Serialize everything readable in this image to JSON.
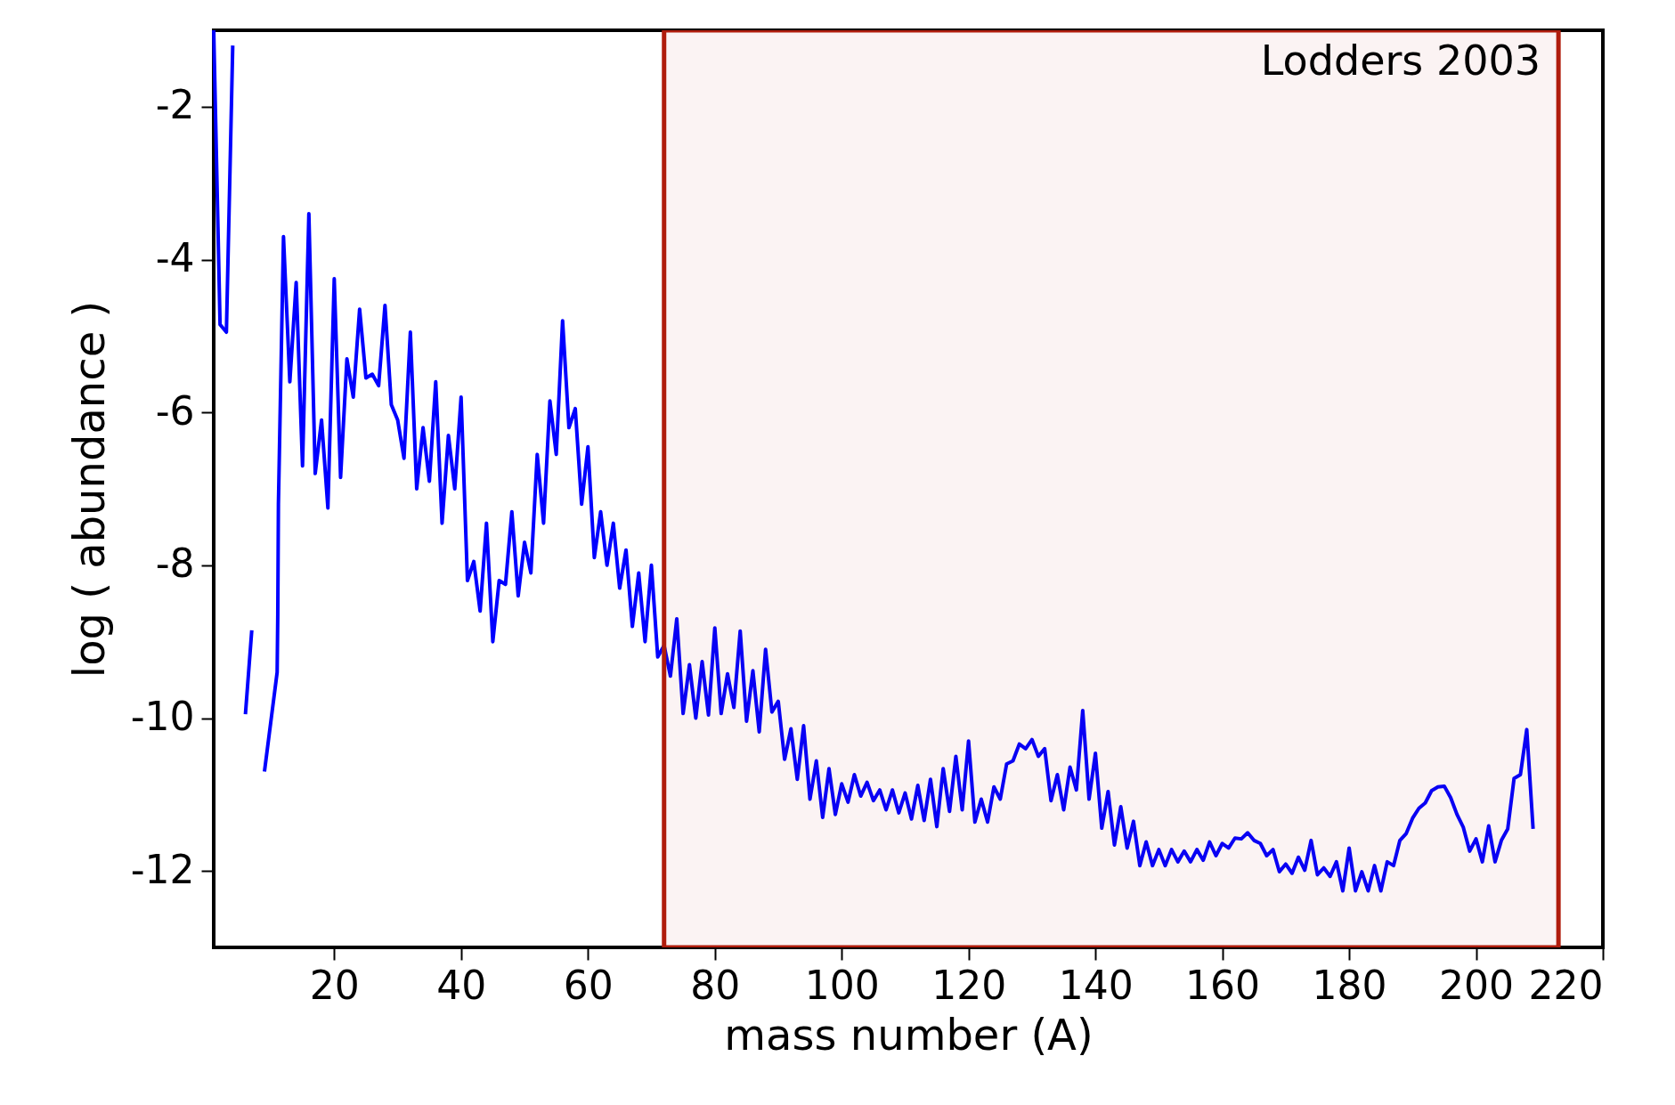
{
  "chart_data": {
    "type": "line",
    "xlabel": "mass number   (A)",
    "ylabel": "log ( abundance )",
    "annotations": [
      "Lodders 2003"
    ],
    "xlim": [
      1,
      220
    ],
    "xticks": [
      20,
      40,
      60,
      80,
      100,
      120,
      140,
      160,
      180,
      200,
      220
    ],
    "ylim": [
      -13,
      -1
    ],
    "yticks": [
      -12,
      -10,
      -8,
      -6,
      -4,
      -2
    ],
    "grid": false,
    "marker": "none",
    "line_style": "solid",
    "bands": [
      {
        "axis": "x",
        "from": 72,
        "to": 213,
        "color": "#b01c0c"
      }
    ],
    "series": [
      {
        "color": "#0000ff",
        "x": [
          1,
          2,
          3,
          4,
          5,
          6,
          7,
          8,
          9,
          11,
          11.1,
          11.2,
          12,
          13,
          14,
          15,
          16,
          17,
          18,
          19,
          20,
          21,
          22,
          23,
          24,
          25,
          26,
          27,
          28,
          29,
          30,
          31,
          32,
          33,
          34,
          35,
          36,
          37,
          38,
          39,
          40,
          41,
          42,
          43,
          44,
          45,
          46,
          47,
          48,
          49,
          50,
          51,
          52,
          53,
          54,
          55,
          56,
          57,
          58,
          59,
          60,
          61,
          62,
          63,
          64,
          65,
          66,
          67,
          68,
          69,
          70,
          71,
          72,
          73,
          74,
          75,
          76,
          77,
          78,
          79,
          80,
          81,
          82,
          83,
          84,
          85,
          86,
          87,
          88,
          89,
          90,
          91,
          92,
          93,
          94,
          95,
          96,
          97,
          98,
          99,
          100,
          101,
          102,
          103,
          104,
          105,
          106,
          107,
          108,
          109,
          110,
          111,
          112,
          113,
          114,
          115,
          116,
          117,
          118,
          119,
          120,
          121,
          122,
          123,
          124,
          125,
          126,
          127,
          128,
          129,
          130,
          131,
          132,
          133,
          134,
          135,
          136,
          137,
          138,
          139,
          140,
          141,
          142,
          143,
          144,
          145,
          146,
          147,
          148,
          149,
          150,
          151,
          152,
          153,
          154,
          155,
          156,
          157,
          158,
          159,
          160,
          161,
          162,
          163,
          164,
          165,
          166,
          167,
          168,
          169,
          170,
          171,
          172,
          173,
          174,
          175,
          176,
          177,
          178,
          179,
          180,
          181,
          182,
          183,
          184,
          185,
          186,
          187,
          188,
          189,
          190,
          191,
          192,
          193,
          194,
          195,
          196,
          197,
          198,
          199,
          200,
          201,
          202,
          203,
          204,
          205,
          206,
          207,
          208,
          209
        ],
        "values": [
          -1.0,
          -4.85,
          -4.95,
          -1.2,
          null,
          -9.95,
          -8.85,
          null,
          -10.7,
          -9.4,
          -8.65,
          -7.2,
          -3.7,
          -5.6,
          -4.3,
          -6.7,
          -3.4,
          -6.8,
          -6.1,
          -7.25,
          -4.25,
          -6.85,
          -5.3,
          -5.8,
          -4.65,
          -5.55,
          -5.5,
          -5.65,
          -4.6,
          -5.9,
          -6.1,
          -6.6,
          -4.95,
          -7.0,
          -6.2,
          -6.9,
          -5.6,
          -7.45,
          -6.3,
          -7.0,
          -5.8,
          -8.2,
          -7.95,
          -8.6,
          -7.45,
          -9.0,
          -8.2,
          -8.25,
          -7.3,
          -8.4,
          -7.7,
          -8.1,
          -6.55,
          -7.45,
          -5.85,
          -6.55,
          -4.8,
          -6.2,
          -5.95,
          -7.2,
          -6.45,
          -7.9,
          -7.3,
          -8.0,
          -7.45,
          -8.3,
          -7.8,
          -8.8,
          -8.1,
          -9.0,
          -8.0,
          -9.2,
          -9.05,
          -9.45,
          -8.7,
          -9.94,
          -9.3,
          -10.0,
          -9.26,
          -9.96,
          -8.82,
          -9.94,
          -9.42,
          -9.86,
          -8.86,
          -10.04,
          -9.38,
          -10.18,
          -9.1,
          -9.92,
          -9.78,
          -10.54,
          -10.14,
          -10.8,
          -10.1,
          -11.06,
          -10.56,
          -11.3,
          -10.66,
          -11.26,
          -10.86,
          -11.1,
          -10.74,
          -11.02,
          -10.84,
          -11.08,
          -10.94,
          -11.2,
          -10.94,
          -11.24,
          -10.98,
          -11.32,
          -10.88,
          -11.34,
          -10.8,
          -11.42,
          -10.66,
          -11.22,
          -10.5,
          -11.2,
          -10.3,
          -11.36,
          -11.06,
          -11.36,
          -10.9,
          -11.06,
          -10.6,
          -10.56,
          -10.34,
          -10.4,
          -10.28,
          -10.5,
          -10.4,
          -11.08,
          -10.74,
          -11.2,
          -10.64,
          -10.94,
          -9.9,
          -11.06,
          -10.46,
          -11.44,
          -10.96,
          -11.66,
          -11.16,
          -11.7,
          -11.35,
          -11.93,
          -11.62,
          -11.93,
          -11.72,
          -11.93,
          -11.72,
          -11.88,
          -11.74,
          -11.88,
          -11.72,
          -11.86,
          -11.62,
          -11.8,
          -11.64,
          -11.7,
          -11.57,
          -11.58,
          -11.5,
          -11.6,
          -11.64,
          -11.8,
          -11.72,
          -12.01,
          -11.91,
          -12.03,
          -11.82,
          -11.99,
          -11.6,
          -12.05,
          -11.96,
          -12.07,
          -11.88,
          -12.26,
          -11.7,
          -12.26,
          -12.01,
          -12.26,
          -11.93,
          -12.26,
          -11.88,
          -11.93,
          -11.6,
          -11.51,
          -11.31,
          -11.18,
          -11.11,
          -10.95,
          -10.9,
          -10.89,
          -11.04,
          -11.26,
          -11.43,
          -11.74,
          -11.58,
          -11.88,
          -11.41,
          -11.88,
          -11.6,
          -11.45,
          -10.79,
          -10.74,
          -10.15,
          -11.45
        ]
      }
    ]
  }
}
